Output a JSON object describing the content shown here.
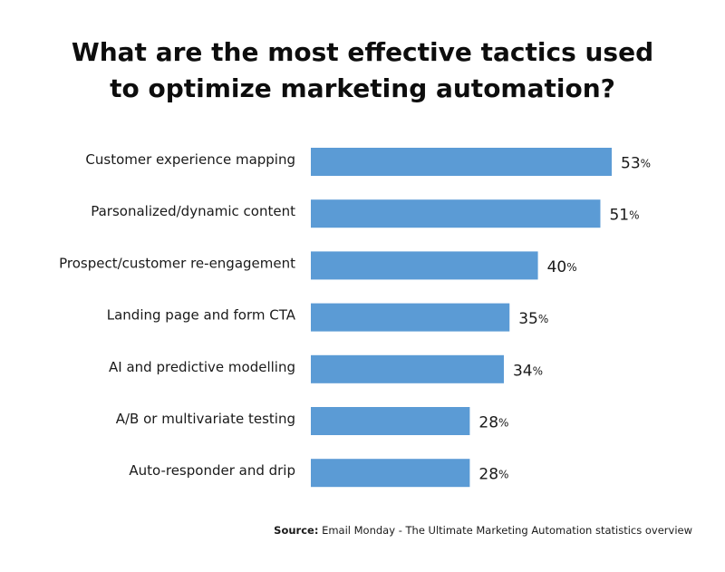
{
  "chart_data": {
    "type": "bar",
    "orientation": "horizontal",
    "title_lines": [
      "What are the most effective tactics used",
      "to optimize marketing automation?"
    ],
    "categories": [
      "Customer experience mapping",
      "Parsonalized/dynamic content",
      "Prospect/customer re-engagement",
      "Landing page and form CTA",
      "AI and predictive modelling",
      "A/B or multivariate testing",
      "Auto-responder and drip"
    ],
    "values": [
      53,
      51,
      40,
      35,
      34,
      28,
      28
    ],
    "value_suffix": "%",
    "bar_color": "#5b9bd5",
    "grid": false,
    "legend": "none"
  },
  "source": {
    "label": "Source:",
    "text": "Email Monday - The Ultimate Marketing Automation statistics overview"
  }
}
